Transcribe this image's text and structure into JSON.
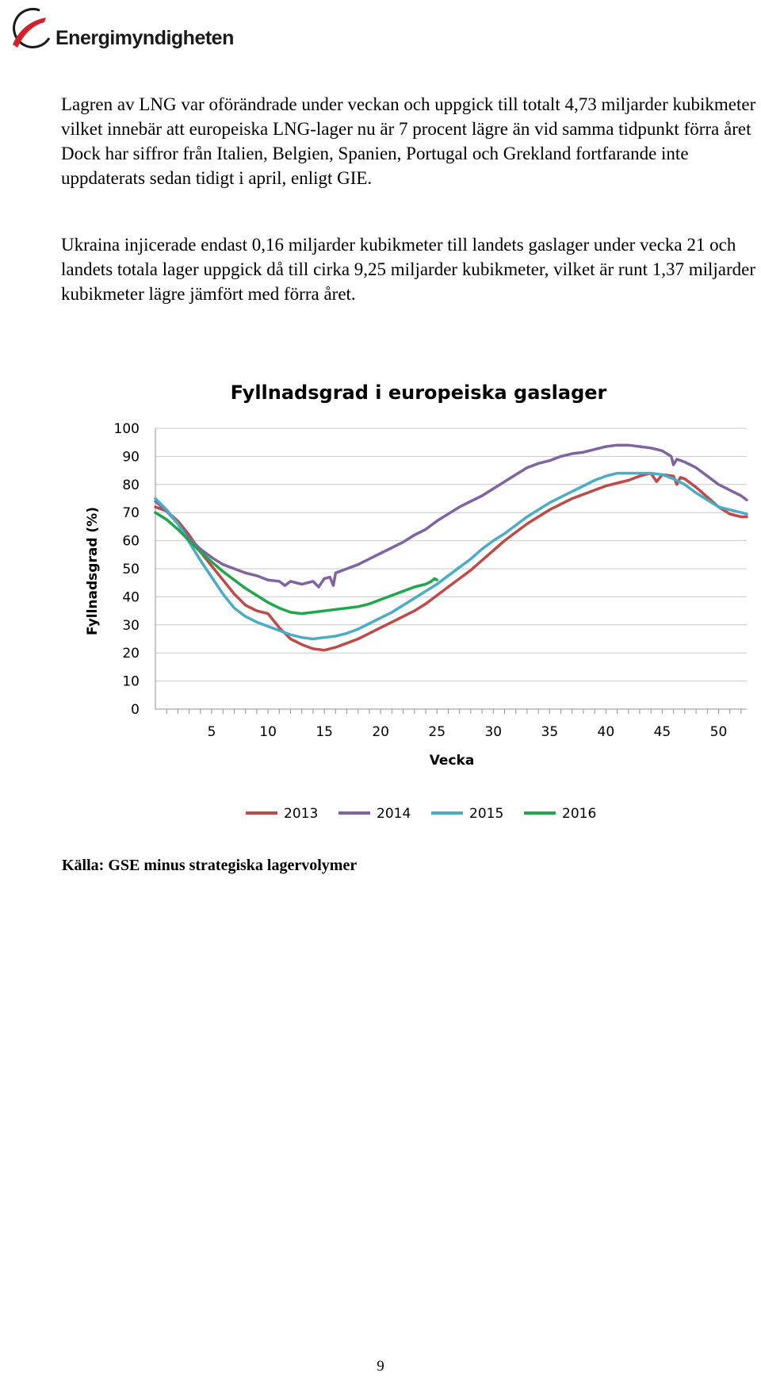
{
  "header": {
    "logo_text": "Energimyndigheten",
    "logo_colors": {
      "swoosh": "#d4202a",
      "ring": "#1a1a1a"
    }
  },
  "paragraphs": [
    "Lagren av LNG var oförändrade under veckan och uppgick till totalt 4,73 miljarder kubikmeter vilket innebär att europeiska LNG-lager nu är 7 procent lägre än vid samma tidpunkt förra året Dock har siffror från Italien, Belgien, Spanien, Portugal och Grekland fortfarande inte uppdaterats sedan tidigt i april, enligt GIE.",
    "Ukraina injicerade endast 0,16 miljarder kubikmeter till landets gaslager under vecka 21 och landets totala lager uppgick då till cirka 9,25 miljarder kubikmeter, vilket är runt 1,37 miljarder kubikmeter lägre jämfört med förra året."
  ],
  "chart_data": {
    "type": "line",
    "title": "Fyllnadsgrad i europeiska gaslager",
    "xlabel": "Vecka",
    "ylabel": "Fyllnadsgrad (%)",
    "xlim": [
      0,
      52.5
    ],
    "ylim": [
      0,
      100
    ],
    "yticks": [
      "0",
      "10",
      "20",
      "30",
      "40",
      "50",
      "60",
      "70",
      "80",
      "90",
      "100"
    ],
    "xticks": [
      "5",
      "10",
      "15",
      "20",
      "25",
      "30",
      "35",
      "40",
      "45",
      "50"
    ],
    "xtick_values": [
      5,
      10,
      15,
      20,
      25,
      30,
      35,
      40,
      45,
      50
    ],
    "grid": true,
    "legend": "bottom",
    "series": [
      {
        "name": "2013",
        "color": "#be4b48",
        "points": [
          [
            0,
            72
          ],
          [
            1,
            70.5
          ],
          [
            2,
            67
          ],
          [
            3,
            62
          ],
          [
            4,
            56
          ],
          [
            5,
            51
          ],
          [
            6,
            46
          ],
          [
            7,
            41
          ],
          [
            8,
            37
          ],
          [
            9,
            35
          ],
          [
            10,
            34
          ],
          [
            11,
            29
          ],
          [
            12,
            25
          ],
          [
            13,
            23
          ],
          [
            14,
            21.5
          ],
          [
            15,
            21
          ],
          [
            16,
            22
          ],
          [
            17,
            23.5
          ],
          [
            18,
            25
          ],
          [
            19,
            27
          ],
          [
            20,
            29
          ],
          [
            21,
            31
          ],
          [
            22,
            33
          ],
          [
            23,
            35
          ],
          [
            24,
            37.5
          ],
          [
            25,
            40.5
          ],
          [
            26,
            43.5
          ],
          [
            27,
            46.5
          ],
          [
            28,
            49.5
          ],
          [
            29,
            53
          ],
          [
            30,
            56.5
          ],
          [
            31,
            60
          ],
          [
            32,
            63
          ],
          [
            33,
            66
          ],
          [
            34,
            68.5
          ],
          [
            35,
            71
          ],
          [
            36,
            73
          ],
          [
            37,
            75
          ],
          [
            38,
            76.5
          ],
          [
            39,
            78
          ],
          [
            40,
            79.5
          ],
          [
            41,
            80.5
          ],
          [
            42,
            81.5
          ],
          [
            43,
            83
          ],
          [
            44,
            84
          ],
          [
            44.5,
            81
          ],
          [
            45,
            83.5
          ],
          [
            46,
            83
          ],
          [
            46.3,
            80
          ],
          [
            46.6,
            82.5
          ],
          [
            47,
            82
          ],
          [
            48,
            79
          ],
          [
            49,
            75.5
          ],
          [
            50,
            72
          ],
          [
            51,
            69.5
          ],
          [
            52,
            68.5
          ],
          [
            52.5,
            68.5
          ]
        ]
      },
      {
        "name": "2014",
        "color": "#8064a2",
        "points": [
          [
            0,
            74
          ],
          [
            1,
            70.5
          ],
          [
            2,
            66
          ],
          [
            3,
            61
          ],
          [
            4,
            57
          ],
          [
            5,
            54
          ],
          [
            6,
            51.5
          ],
          [
            7,
            50
          ],
          [
            8,
            48.5
          ],
          [
            9,
            47.5
          ],
          [
            10,
            46
          ],
          [
            11,
            45.5
          ],
          [
            11.5,
            44
          ],
          [
            12,
            45.5
          ],
          [
            13,
            44.5
          ],
          [
            14,
            45.5
          ],
          [
            14.5,
            43.5
          ],
          [
            15,
            46.5
          ],
          [
            15.5,
            47
          ],
          [
            15.8,
            44
          ],
          [
            16,
            48.5
          ],
          [
            17,
            50
          ],
          [
            18,
            51.5
          ],
          [
            19,
            53.5
          ],
          [
            20,
            55.5
          ],
          [
            21,
            57.5
          ],
          [
            22,
            59.5
          ],
          [
            23,
            62
          ],
          [
            24,
            64
          ],
          [
            25,
            67
          ],
          [
            26,
            69.5
          ],
          [
            27,
            72
          ],
          [
            28,
            74
          ],
          [
            29,
            76
          ],
          [
            30,
            78.5
          ],
          [
            31,
            81
          ],
          [
            32,
            83.5
          ],
          [
            33,
            86
          ],
          [
            34,
            87.5
          ],
          [
            35,
            88.5
          ],
          [
            36,
            90
          ],
          [
            37,
            91
          ],
          [
            38,
            91.5
          ],
          [
            39,
            92.5
          ],
          [
            40,
            93.5
          ],
          [
            41,
            94
          ],
          [
            42,
            94
          ],
          [
            43,
            93.5
          ],
          [
            44,
            93
          ],
          [
            45,
            92
          ],
          [
            45.8,
            90
          ],
          [
            46,
            87
          ],
          [
            46.3,
            89
          ],
          [
            47,
            88
          ],
          [
            48,
            86
          ],
          [
            49,
            83
          ],
          [
            50,
            80
          ],
          [
            51,
            78
          ],
          [
            52,
            76
          ],
          [
            52.5,
            74.5
          ]
        ]
      },
      {
        "name": "2015",
        "color": "#4bacc6",
        "points": [
          [
            0,
            75
          ],
          [
            1,
            71
          ],
          [
            2,
            66
          ],
          [
            3,
            59.5
          ],
          [
            4,
            53
          ],
          [
            5,
            47
          ],
          [
            6,
            41
          ],
          [
            7,
            36
          ],
          [
            8,
            33
          ],
          [
            9,
            31
          ],
          [
            10,
            29.5
          ],
          [
            11,
            28
          ],
          [
            12,
            26.5
          ],
          [
            13,
            25.5
          ],
          [
            14,
            25
          ],
          [
            15,
            25.5
          ],
          [
            16,
            26
          ],
          [
            17,
            27
          ],
          [
            18,
            28.5
          ],
          [
            19,
            30.5
          ],
          [
            20,
            32.5
          ],
          [
            21,
            34.5
          ],
          [
            22,
            37
          ],
          [
            23,
            39.5
          ],
          [
            24,
            42
          ],
          [
            25,
            44.5
          ],
          [
            26,
            47.5
          ],
          [
            27,
            50.5
          ],
          [
            28,
            53.5
          ],
          [
            29,
            57
          ],
          [
            30,
            60
          ],
          [
            31,
            62.5
          ],
          [
            32,
            65.5
          ],
          [
            33,
            68.5
          ],
          [
            34,
            71
          ],
          [
            35,
            73.5
          ],
          [
            36,
            75.5
          ],
          [
            37,
            77.5
          ],
          [
            38,
            79.5
          ],
          [
            39,
            81.5
          ],
          [
            40,
            83
          ],
          [
            41,
            84
          ],
          [
            42,
            84
          ],
          [
            43,
            84
          ],
          [
            44,
            84
          ],
          [
            45,
            83.5
          ],
          [
            46,
            82
          ],
          [
            47,
            80
          ],
          [
            48,
            77
          ],
          [
            49,
            74.5
          ],
          [
            50,
            72
          ],
          [
            51,
            71
          ],
          [
            52,
            70
          ],
          [
            52.5,
            69.5
          ]
        ]
      },
      {
        "name": "2016",
        "color": "#1fa84a",
        "points": [
          [
            0,
            70
          ],
          [
            1,
            67.5
          ],
          [
            2,
            64
          ],
          [
            3,
            60
          ],
          [
            4,
            56
          ],
          [
            5,
            52.5
          ],
          [
            6,
            49
          ],
          [
            7,
            46
          ],
          [
            8,
            43
          ],
          [
            9,
            40.5
          ],
          [
            10,
            38
          ],
          [
            11,
            36
          ],
          [
            12,
            34.5
          ],
          [
            13,
            34
          ],
          [
            14,
            34.5
          ],
          [
            15,
            35
          ],
          [
            16,
            35.5
          ],
          [
            17,
            36
          ],
          [
            18,
            36.5
          ],
          [
            19,
            37.5
          ],
          [
            20,
            39
          ],
          [
            21,
            40.5
          ],
          [
            22,
            42
          ],
          [
            23,
            43.5
          ],
          [
            24,
            44.5
          ],
          [
            24.5,
            45.5
          ],
          [
            24.8,
            46.5
          ],
          [
            25,
            46
          ]
        ]
      }
    ]
  },
  "source": "Källa: GSE minus strategiska lagervolymer",
  "page_number": "9"
}
